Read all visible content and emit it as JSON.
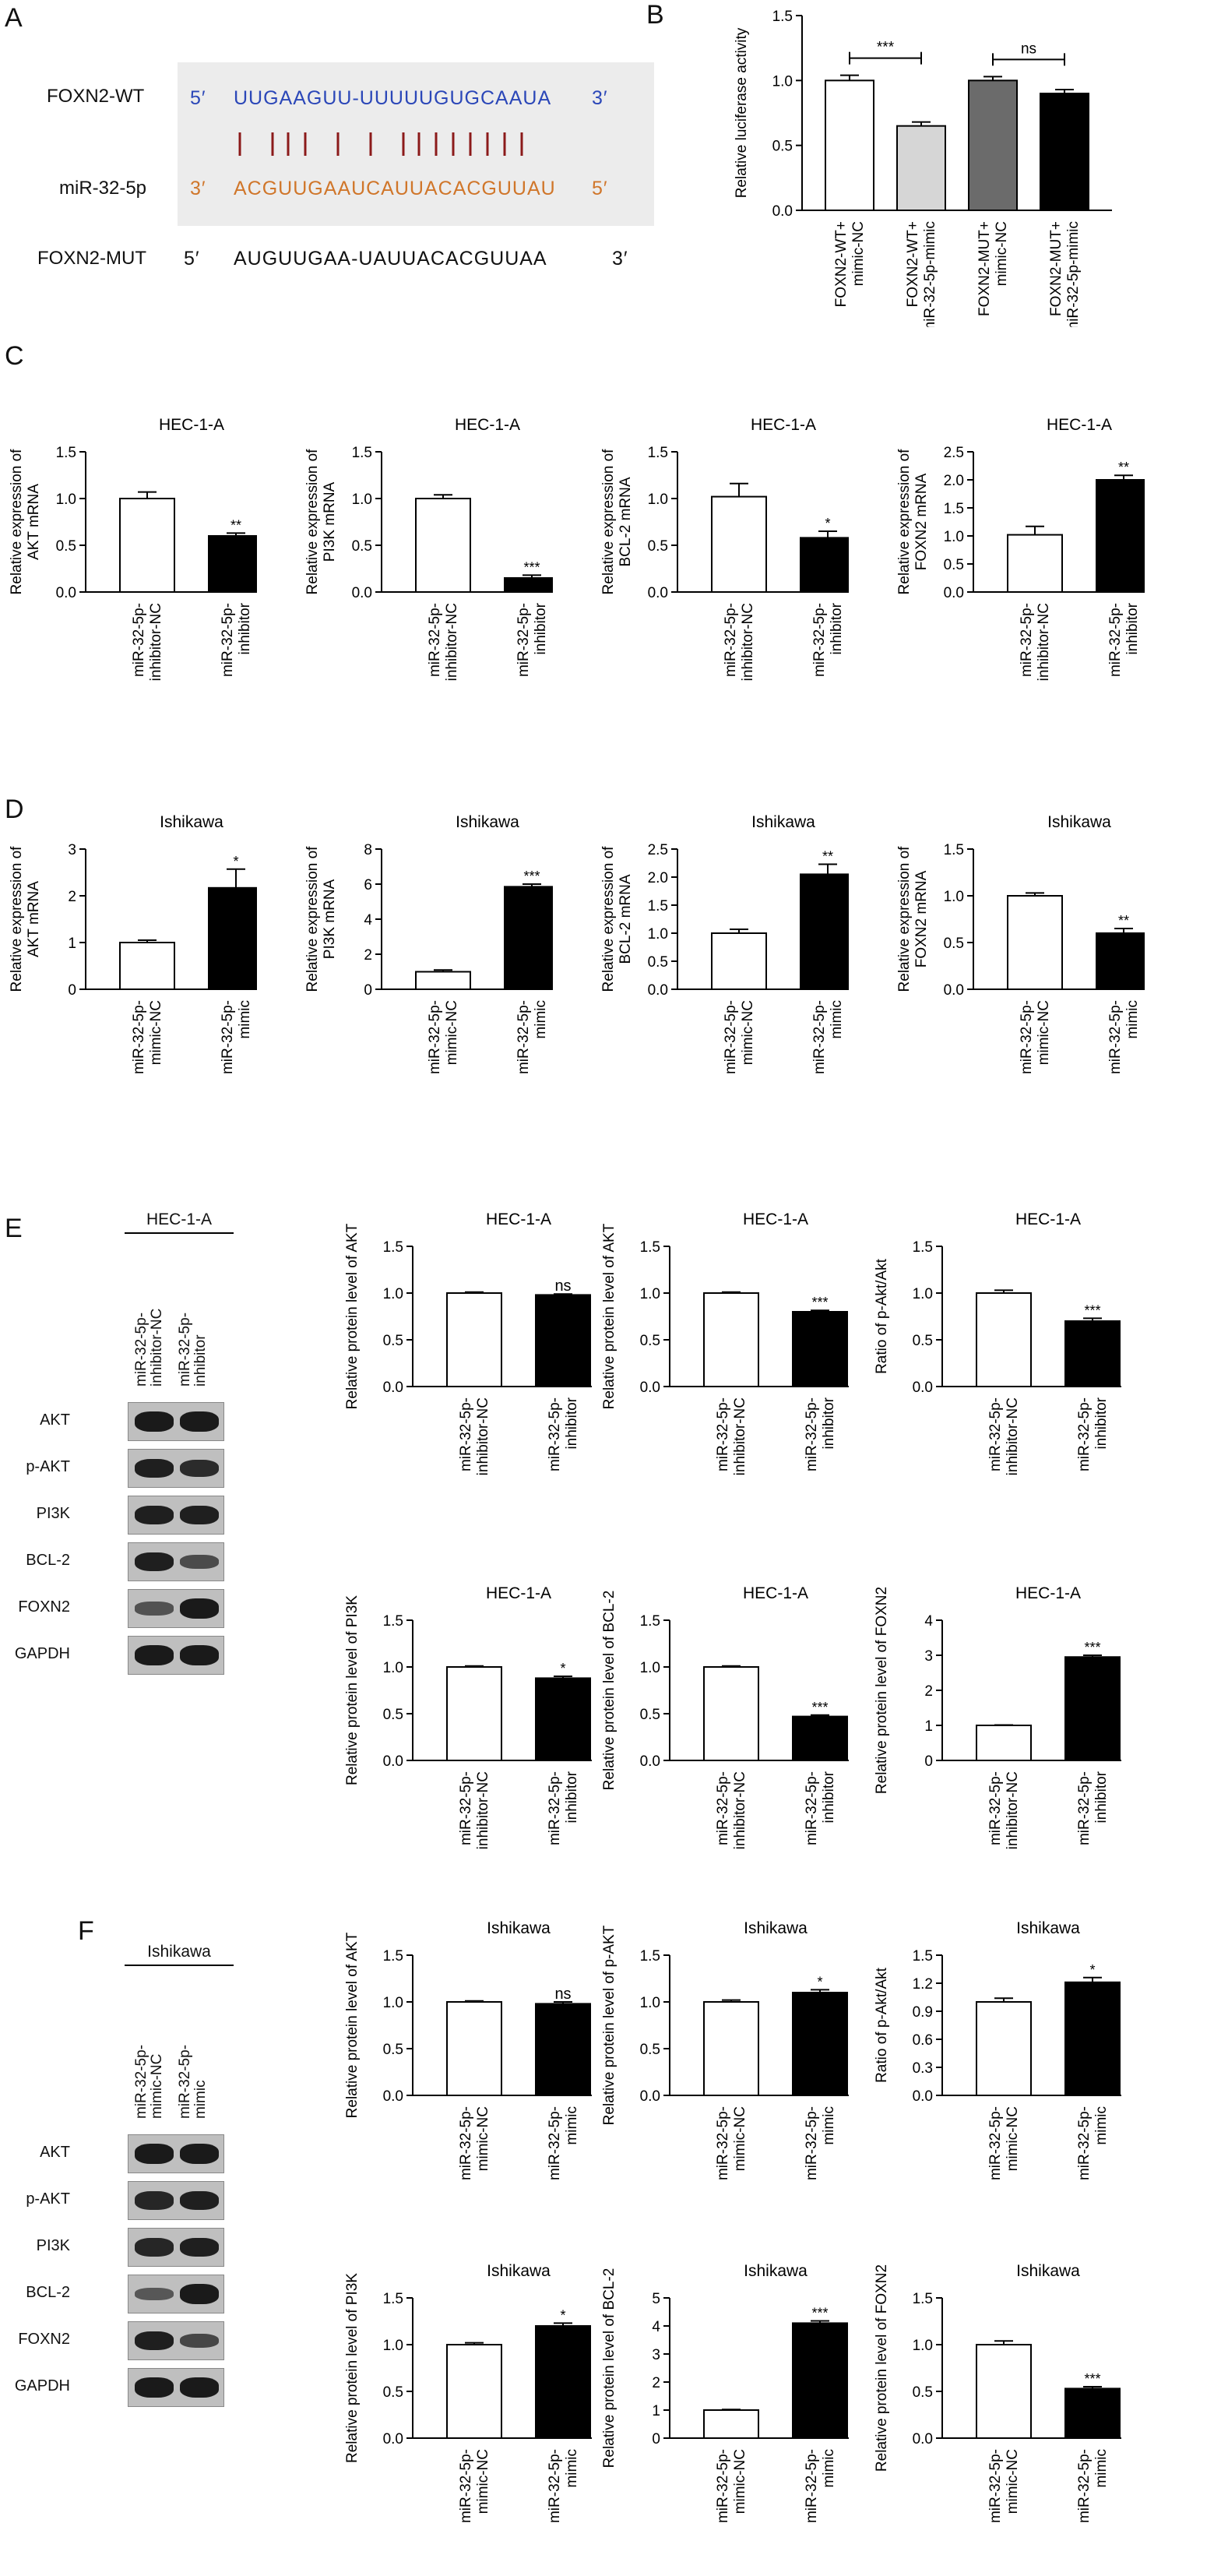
{
  "panels": {
    "A": "A",
    "B": "B",
    "C": "C",
    "D": "D",
    "E": "E",
    "F": "F"
  },
  "panelA": {
    "wt_label": "FOXN2-WT",
    "wt_5": "5′",
    "wt_seq": "UUGAAGUU-UUUUUGUGCAAUA",
    "wt_3": "3′",
    "mir_label": "miR-32-5p",
    "mir_3": "3′",
    "mir_seq": "ACGUUGAAUCAUUACACGUUAU",
    "mir_5": "5′",
    "mut_label": "FOXN2-MUT",
    "mut_5": "5′",
    "mut_seq": "AUGUUGAA-UAUUACACGUUAA",
    "mut_3": "3′",
    "colors": {
      "wt": "#2b47b8",
      "mir": "#d0762a",
      "pairs": "#8b1a1a"
    }
  },
  "blotE": {
    "title": "HEC-1-A",
    "lanes": [
      "miR-32-5p-\ninhibitor-NC",
      "miR-32-5p-\ninhibitor"
    ],
    "rows": [
      "AKT",
      "p-AKT",
      "PI3K",
      "BCL-2",
      "FOXN2",
      "GAPDH"
    ],
    "intensity": [
      [
        0.95,
        0.95
      ],
      [
        0.9,
        0.8
      ],
      [
        0.9,
        0.9
      ],
      [
        0.9,
        0.5
      ],
      [
        0.45,
        0.95
      ],
      [
        0.95,
        0.95
      ]
    ]
  },
  "blotF": {
    "title": "Ishikawa",
    "lanes": [
      "miR-32-5p-\nmimic-NC",
      "miR-32-5p-\nmimic"
    ],
    "rows": [
      "AKT",
      "p-AKT",
      "PI3K",
      "BCL-2",
      "FOXN2",
      "GAPDH"
    ],
    "intensity": [
      [
        0.95,
        0.95
      ],
      [
        0.85,
        0.9
      ],
      [
        0.85,
        0.9
      ],
      [
        0.4,
        0.95
      ],
      [
        0.9,
        0.55
      ],
      [
        0.95,
        0.95
      ]
    ]
  },
  "chart_data": [
    {
      "id": "B",
      "type": "bar",
      "title": "",
      "ylabel": "Relative luciferase activity",
      "ylim": [
        0,
        1.5
      ],
      "yticks": [
        "0.0",
        "0.5",
        "1.0",
        "1.5"
      ],
      "categories": [
        "FOXN2-WT+\nmimic-NC",
        "FOXN2-WT+\nmiR-32-5p-mimic",
        "FOXN2-MUT+\nmimic-NC",
        "FOXN2-MUT+\nmiR-32-5p-mimic"
      ],
      "values": [
        1.0,
        0.65,
        1.0,
        0.9
      ],
      "errors": [
        0.04,
        0.03,
        0.03,
        0.03
      ],
      "fills": [
        "#ffffff",
        "#d6d6d6",
        "#6b6b6b",
        "#000000"
      ],
      "brackets": [
        {
          "from": 0,
          "to": 1,
          "label": "***"
        },
        {
          "from": 2,
          "to": 3,
          "label": "ns"
        }
      ],
      "sig": [
        "",
        "",
        "",
        ""
      ]
    },
    {
      "id": "C1",
      "type": "bar",
      "title": "HEC-1-A",
      "ylabel": "Relative expression of\nAKT mRNA",
      "ylim": [
        0,
        1.5
      ],
      "yticks": [
        "0.0",
        "0.5",
        "1.0",
        "1.5"
      ],
      "categories": [
        "miR-32-5p-\ninhibitor-NC",
        "miR-32-5p-\ninhibitor"
      ],
      "values": [
        1.0,
        0.6
      ],
      "errors": [
        0.07,
        0.03
      ],
      "fills": [
        "#ffffff",
        "#000000"
      ],
      "sig": [
        "",
        "**"
      ]
    },
    {
      "id": "C2",
      "type": "bar",
      "title": "HEC-1-A",
      "ylabel": "Relative expression of\nPI3K mRNA",
      "ylim": [
        0,
        1.5
      ],
      "yticks": [
        "0.0",
        "0.5",
        "1.0",
        "1.5"
      ],
      "categories": [
        "miR-32-5p-\ninhibitor-NC",
        "miR-32-5p-\ninhibitor"
      ],
      "values": [
        1.0,
        0.15
      ],
      "errors": [
        0.04,
        0.03
      ],
      "fills": [
        "#ffffff",
        "#000000"
      ],
      "sig": [
        "",
        "***"
      ]
    },
    {
      "id": "C3",
      "type": "bar",
      "title": "HEC-1-A",
      "ylabel": "Relative expression of\nBCL-2 mRNA",
      "ylim": [
        0,
        1.5
      ],
      "yticks": [
        "0.0",
        "0.5",
        "1.0",
        "1.5"
      ],
      "categories": [
        "miR-32-5p-\ninhibitor-NC",
        "miR-32-5p-\ninhibitor"
      ],
      "values": [
        1.02,
        0.58
      ],
      "errors": [
        0.14,
        0.07
      ],
      "fills": [
        "#ffffff",
        "#000000"
      ],
      "sig": [
        "",
        "*"
      ]
    },
    {
      "id": "C4",
      "type": "bar",
      "title": "HEC-1-A",
      "ylabel": "Relative expression of\nFOXN2 mRNA",
      "ylim": [
        0,
        2.5
      ],
      "yticks": [
        "0.0",
        "0.5",
        "1.0",
        "1.5",
        "2.0",
        "2.5"
      ],
      "categories": [
        "miR-32-5p-\ninhibitor-NC",
        "miR-32-5p-\ninhibitor"
      ],
      "values": [
        1.02,
        2.0
      ],
      "errors": [
        0.15,
        0.08
      ],
      "fills": [
        "#ffffff",
        "#000000"
      ],
      "sig": [
        "",
        "**"
      ]
    },
    {
      "id": "D1",
      "type": "bar",
      "title": "Ishikawa",
      "ylabel": "Relative expression of\nAKT mRNA",
      "ylim": [
        0,
        3
      ],
      "yticks": [
        "0",
        "1",
        "2",
        "3"
      ],
      "categories": [
        "miR-32-5p-\nmimic-NC",
        "miR-32-5p-\nmimic"
      ],
      "values": [
        1.0,
        2.17
      ],
      "errors": [
        0.05,
        0.4
      ],
      "fills": [
        "#ffffff",
        "#000000"
      ],
      "sig": [
        "",
        "*"
      ]
    },
    {
      "id": "D2",
      "type": "bar",
      "title": "Ishikawa",
      "ylabel": "Relative expression of\nPI3K mRNA",
      "ylim": [
        0,
        8
      ],
      "yticks": [
        "0",
        "2",
        "4",
        "6",
        "8"
      ],
      "categories": [
        "miR-32-5p-\nmimic-NC",
        "miR-32-5p-\nmimic"
      ],
      "values": [
        1.0,
        5.85
      ],
      "errors": [
        0.1,
        0.15
      ],
      "fills": [
        "#ffffff",
        "#000000"
      ],
      "sig": [
        "",
        "***"
      ]
    },
    {
      "id": "D3",
      "type": "bar",
      "title": "Ishikawa",
      "ylabel": "Relative expression of\nBCL-2 mRNA",
      "ylim": [
        0,
        2.5
      ],
      "yticks": [
        "0.0",
        "0.5",
        "1.0",
        "1.5",
        "2.0",
        "2.5"
      ],
      "categories": [
        "miR-32-5p-\nmimic-NC",
        "miR-32-5p-\nmimic"
      ],
      "values": [
        1.0,
        2.05
      ],
      "errors": [
        0.07,
        0.18
      ],
      "fills": [
        "#ffffff",
        "#000000"
      ],
      "sig": [
        "",
        "**"
      ]
    },
    {
      "id": "D4",
      "type": "bar",
      "title": "Ishikawa",
      "ylabel": "Relative expression of\nFOXN2 mRNA",
      "ylim": [
        0,
        1.5
      ],
      "yticks": [
        "0.0",
        "0.5",
        "1.0",
        "1.5"
      ],
      "categories": [
        "miR-32-5p-\nmimic-NC",
        "miR-32-5p-\nmimic"
      ],
      "values": [
        1.0,
        0.6
      ],
      "errors": [
        0.03,
        0.05
      ],
      "fills": [
        "#ffffff",
        "#000000"
      ],
      "sig": [
        "",
        "**"
      ]
    },
    {
      "id": "E1",
      "type": "bar",
      "title": "HEC-1-A",
      "ylabel": "Relative protein level of AKT",
      "ylim": [
        0,
        1.5
      ],
      "yticks": [
        "0.0",
        "0.5",
        "1.0",
        "1.5"
      ],
      "categories": [
        "miR-32-5p-\ninhibitor-NC",
        "miR-32-5p-\ninhibitor"
      ],
      "values": [
        1.0,
        0.98
      ],
      "errors": [
        0.01,
        0.01
      ],
      "fills": [
        "#ffffff",
        "#000000"
      ],
      "sig": [
        "",
        "ns"
      ]
    },
    {
      "id": "E2",
      "type": "bar",
      "title": "HEC-1-A",
      "ylabel": "Relative protein level of AKT",
      "ylim": [
        0,
        1.5
      ],
      "yticks": [
        "0.0",
        "0.5",
        "1.0",
        "1.5"
      ],
      "categories": [
        "miR-32-5p-\ninhibitor-NC",
        "miR-32-5p-\ninhibitor"
      ],
      "values": [
        1.0,
        0.8
      ],
      "errors": [
        0.01,
        0.015
      ],
      "fills": [
        "#ffffff",
        "#000000"
      ],
      "sig": [
        "",
        "***"
      ]
    },
    {
      "id": "E3",
      "type": "bar",
      "title": "HEC-1-A",
      "ylabel": "Ratio of p-Akt/Akt",
      "ylim": [
        0,
        1.5
      ],
      "yticks": [
        "0.0",
        "0.5",
        "1.0",
        "1.5"
      ],
      "categories": [
        "miR-32-5p-\ninhibitor-NC",
        "miR-32-5p-\ninhibitor"
      ],
      "values": [
        1.0,
        0.7
      ],
      "errors": [
        0.03,
        0.03
      ],
      "fills": [
        "#ffffff",
        "#000000"
      ],
      "sig": [
        "",
        "***"
      ]
    },
    {
      "id": "E4",
      "type": "bar",
      "title": "HEC-1-A",
      "ylabel": "Relative protein level of PI3K",
      "ylim": [
        0,
        1.5
      ],
      "yticks": [
        "0.0",
        "0.5",
        "1.0",
        "1.5"
      ],
      "categories": [
        "miR-32-5p-\ninhibitor-NC",
        "miR-32-5p-\ninhibitor"
      ],
      "values": [
        1.0,
        0.88
      ],
      "errors": [
        0.01,
        0.02
      ],
      "fills": [
        "#ffffff",
        "#000000"
      ],
      "sig": [
        "",
        "*"
      ]
    },
    {
      "id": "E5",
      "type": "bar",
      "title": "HEC-1-A",
      "ylabel": "Relative protein level of BCL-2",
      "ylim": [
        0,
        1.5
      ],
      "yticks": [
        "0.0",
        "0.5",
        "1.0",
        "1.5"
      ],
      "categories": [
        "miR-32-5p-\ninhibitor-NC",
        "miR-32-5p-\ninhibitor"
      ],
      "values": [
        1.0,
        0.47
      ],
      "errors": [
        0.01,
        0.015
      ],
      "fills": [
        "#ffffff",
        "#000000"
      ],
      "sig": [
        "",
        "***"
      ]
    },
    {
      "id": "E6",
      "type": "bar",
      "title": "HEC-1-A",
      "ylabel": "Relative protein level of FOXN2",
      "ylim": [
        0,
        4
      ],
      "yticks": [
        "0",
        "1",
        "2",
        "3",
        "4"
      ],
      "categories": [
        "miR-32-5p-\ninhibitor-NC",
        "miR-32-5p-\ninhibitor"
      ],
      "values": [
        1.0,
        2.95
      ],
      "errors": [
        0.01,
        0.05
      ],
      "fills": [
        "#ffffff",
        "#000000"
      ],
      "sig": [
        "",
        "***"
      ]
    },
    {
      "id": "F1",
      "type": "bar",
      "title": "Ishikawa",
      "ylabel": "Relative protein level of AKT",
      "ylim": [
        0,
        1.5
      ],
      "yticks": [
        "0.0",
        "0.5",
        "1.0",
        "1.5"
      ],
      "categories": [
        "miR-32-5p-\nmimic-NC",
        "miR-32-5p-\nmimic"
      ],
      "values": [
        1.0,
        0.98
      ],
      "errors": [
        0.01,
        0.02
      ],
      "fills": [
        "#ffffff",
        "#000000"
      ],
      "sig": [
        "",
        "ns"
      ]
    },
    {
      "id": "F2",
      "type": "bar",
      "title": "Ishikawa",
      "ylabel": "Relative protein level of p-AKT",
      "ylim": [
        0,
        1.5
      ],
      "yticks": [
        "0.0",
        "0.5",
        "1.0",
        "1.5"
      ],
      "categories": [
        "miR-32-5p-\nmimic-NC",
        "miR-32-5p-\nmimic"
      ],
      "values": [
        1.0,
        1.1
      ],
      "errors": [
        0.02,
        0.03
      ],
      "fills": [
        "#ffffff",
        "#000000"
      ],
      "sig": [
        "",
        "*"
      ]
    },
    {
      "id": "F3",
      "type": "bar",
      "title": "Ishikawa",
      "ylabel": "Ratio of p-Akt/Akt",
      "ylim": [
        0,
        1.5
      ],
      "yticks": [
        "0.0",
        "0.3",
        "0.6",
        "0.9",
        "1.2",
        "1.5"
      ],
      "categories": [
        "miR-32-5p-\nmimic-NC",
        "miR-32-5p-\nmimic"
      ],
      "values": [
        1.0,
        1.21
      ],
      "errors": [
        0.04,
        0.05
      ],
      "fills": [
        "#ffffff",
        "#000000"
      ],
      "sig": [
        "",
        "*"
      ]
    },
    {
      "id": "F4",
      "type": "bar",
      "title": "Ishikawa",
      "ylabel": "Relative protein level of PI3K",
      "ylim": [
        0,
        1.5
      ],
      "yticks": [
        "0.0",
        "0.5",
        "1.0",
        "1.5"
      ],
      "categories": [
        "miR-32-5p-\nmimic-NC",
        "miR-32-5p-\nmimic"
      ],
      "values": [
        1.0,
        1.2
      ],
      "errors": [
        0.02,
        0.03
      ],
      "fills": [
        "#ffffff",
        "#000000"
      ],
      "sig": [
        "",
        "*"
      ]
    },
    {
      "id": "F5",
      "type": "bar",
      "title": "Ishikawa",
      "ylabel": "Relative protein level of BCL-2",
      "ylim": [
        0,
        5
      ],
      "yticks": [
        "0",
        "1",
        "2",
        "3",
        "4",
        "5"
      ],
      "categories": [
        "miR-32-5p-\nmimic-NC",
        "miR-32-5p-\nmimic"
      ],
      "values": [
        1.0,
        4.1
      ],
      "errors": [
        0.02,
        0.08
      ],
      "fills": [
        "#ffffff",
        "#000000"
      ],
      "sig": [
        "",
        "***"
      ]
    },
    {
      "id": "F6",
      "type": "bar",
      "title": "Ishikawa",
      "ylabel": "Relative protein level of FOXN2",
      "ylim": [
        0,
        1.5
      ],
      "yticks": [
        "0.0",
        "0.5",
        "1.0",
        "1.5"
      ],
      "categories": [
        "miR-32-5p-\nmimic-NC",
        "miR-32-5p-\nmimic"
      ],
      "values": [
        1.0,
        0.53
      ],
      "errors": [
        0.04,
        0.02
      ],
      "fills": [
        "#ffffff",
        "#000000"
      ],
      "sig": [
        "",
        "***"
      ]
    }
  ]
}
